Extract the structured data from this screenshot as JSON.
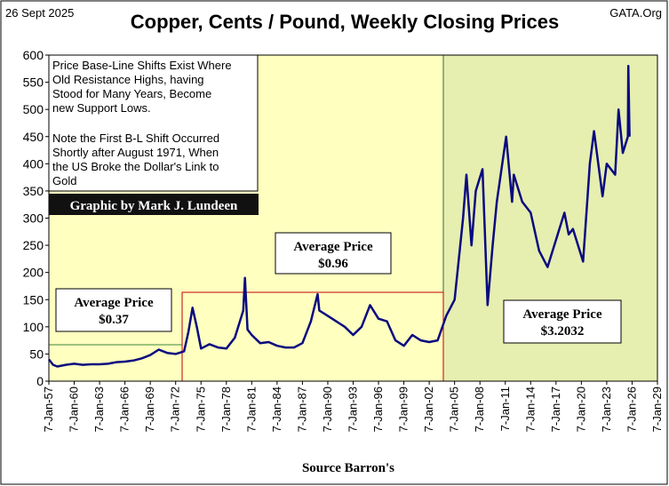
{
  "chart_data": {
    "type": "line",
    "title": "Copper, Cents / Pound, Weekly Closing Prices",
    "date": "26 Sept 2025",
    "source_site": "GATA.Org",
    "x_label": "Source Barron's",
    "credit": "Graphic by Mark J. Lundeen",
    "note": [
      "Price Base-Line Shifts Exist Where",
      "Old Resistance Highs,  having",
      "Stood for Many Years, Become",
      "new Support Lows.",
      "Note the First B-L Shift Occurred",
      "Shortly after August 1971, When",
      "the US Broke the Dollar's Link to",
      "Gold"
    ],
    "averages": [
      {
        "label": "Average Price",
        "value": "$0.37"
      },
      {
        "label": "Average Price",
        "value": "$0.96"
      },
      {
        "label": "Average Price",
        "value": "$3.2032"
      }
    ],
    "xlim": [
      1957,
      2029
    ],
    "xticks": [
      {
        "value": 1957,
        "label": "7-Jan-57"
      },
      {
        "value": 1960,
        "label": "7-Jan-60"
      },
      {
        "value": 1963,
        "label": "7-Jan-63"
      },
      {
        "value": 1966,
        "label": "7-Jan-66"
      },
      {
        "value": 1969,
        "label": "7-Jan-69"
      },
      {
        "value": 1972,
        "label": "7-Jan-72"
      },
      {
        "value": 1975,
        "label": "7-Jan-75"
      },
      {
        "value": 1978,
        "label": "7-Jan-78"
      },
      {
        "value": 1981,
        "label": "7-Jan-81"
      },
      {
        "value": 1984,
        "label": "7-Jan-84"
      },
      {
        "value": 1987,
        "label": "7-Jan-87"
      },
      {
        "value": 1990,
        "label": "7-Jan-90"
      },
      {
        "value": 1993,
        "label": "7-Jan-93"
      },
      {
        "value": 1996,
        "label": "7-Jan-96"
      },
      {
        "value": 1999,
        "label": "7-Jan-99"
      },
      {
        "value": 2002,
        "label": "7-Jan-02"
      },
      {
        "value": 2005,
        "label": "7-Jan-05"
      },
      {
        "value": 2008,
        "label": "7-Jan-08"
      },
      {
        "value": 2011,
        "label": "7-Jan-11"
      },
      {
        "value": 2014,
        "label": "7-Jan-14"
      },
      {
        "value": 2017,
        "label": "7-Jan-17"
      },
      {
        "value": 2020,
        "label": "7-Jan-20"
      },
      {
        "value": 2023,
        "label": "7-Jan-23"
      },
      {
        "value": 2026,
        "label": "7-Jan-26"
      },
      {
        "value": 2029,
        "label": "7-Jan-29"
      }
    ],
    "ylim": [
      0,
      600
    ],
    "yticks": [
      0,
      50,
      100,
      150,
      200,
      250,
      300,
      350,
      400,
      450,
      500,
      550,
      600
    ],
    "series": [
      {
        "name": "Copper",
        "color": "#0a0a80",
        "x": [
          1957,
          1957.5,
          1958,
          1959,
          1960,
          1961,
          1962,
          1963,
          1964,
          1965,
          1966,
          1967,
          1968,
          1969,
          1970,
          1971,
          1972,
          1973,
          1973.5,
          1974,
          1974.5,
          1975,
          1976,
          1977,
          1978,
          1979,
          1980,
          1980.2,
          1980.5,
          1981,
          1982,
          1983,
          1984,
          1985,
          1986,
          1987,
          1988,
          1988.8,
          1989,
          1990,
          1991,
          1992,
          1993,
          1994,
          1995,
          1996,
          1997,
          1998,
          1999,
          2000,
          2001,
          2002,
          2003,
          2004,
          2005,
          2006,
          2006.4,
          2007,
          2007.5,
          2008.3,
          2008.9,
          2009.5,
          2010,
          2011.1,
          2011.8,
          2012,
          2013,
          2014,
          2015,
          2016,
          2017,
          2018,
          2018.5,
          2019,
          2020.2,
          2021,
          2021.5,
          2022.5,
          2023,
          2024,
          2024.4,
          2024.9,
          2025.5,
          2025.55,
          2025.7
        ],
        "values": [
          40,
          30,
          27,
          30,
          32,
          30,
          31,
          31,
          32,
          35,
          36,
          38,
          42,
          48,
          58,
          52,
          50,
          55,
          90,
          135,
          100,
          60,
          68,
          62,
          60,
          80,
          130,
          190,
          95,
          85,
          70,
          72,
          65,
          62,
          62,
          70,
          110,
          160,
          130,
          120,
          110,
          100,
          85,
          100,
          140,
          115,
          110,
          75,
          65,
          85,
          75,
          72,
          75,
          120,
          150,
          300,
          380,
          250,
          350,
          390,
          140,
          250,
          330,
          450,
          330,
          380,
          330,
          310,
          240,
          210,
          260,
          310,
          270,
          280,
          220,
          400,
          460,
          340,
          400,
          380,
          500,
          420,
          450,
          580,
          450
        ]
      }
    ]
  }
}
